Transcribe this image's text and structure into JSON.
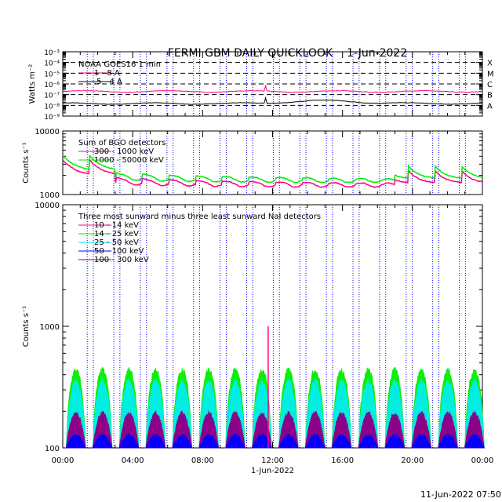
{
  "title": "FERMI GBM DAILY QUICKLOOK",
  "date": "1-Jun-2022",
  "footer_timestamp": "11-Jun-2022 07:50",
  "xlabel": "1-Jun-2022",
  "x_ticks": [
    "00:00",
    "04:00",
    "08:00",
    "12:00",
    "16:00",
    "20:00",
    "00:00"
  ],
  "colors": {
    "magenta": "#ff0088",
    "green": "#00ee00",
    "cyan": "#00eeee",
    "blue": "#0000ff",
    "purple": "#880088",
    "black": "#000000",
    "saa_lines": "#0000ff"
  },
  "chart_data": [
    {
      "type": "line",
      "panel": "goes",
      "ylabel": "Watts m⁻²",
      "yscale": "log",
      "ylim": [
        1e-09,
        0.001
      ],
      "y_ticks": [
        "10⁻³",
        "10⁻⁴",
        "10⁻⁵",
        "10⁻⁶",
        "10⁻⁷",
        "10⁻⁸",
        "10⁻⁹"
      ],
      "class_labels": [
        "X",
        "M",
        "C",
        "B",
        "A"
      ],
      "legend_title": "NOAA GOES16 1 min",
      "series": [
        {
          "name": "1 - 8 A",
          "color": "magenta",
          "level": 2e-07
        },
        {
          "name": ".5 - 4 A",
          "color": "black",
          "level": 1.5e-08
        }
      ]
    },
    {
      "type": "line",
      "panel": "bgo",
      "ylabel": "Counts s⁻¹",
      "yscale": "log",
      "ylim": [
        1000,
        10000
      ],
      "y_ticks": [
        "10000",
        "1000"
      ],
      "legend_title": "Sum of BGO detectors",
      "series": [
        {
          "name": "300 - 1000 keV",
          "color": "magenta"
        },
        {
          "name": "1000 - 50000 keV",
          "color": "green"
        }
      ]
    },
    {
      "type": "line",
      "panel": "nai",
      "ylabel": "Counts s⁻¹",
      "yscale": "log",
      "ylim": [
        100,
        10000
      ],
      "y_ticks": [
        "10000",
        "1000",
        "100"
      ],
      "legend_title": "Three most sunward minus three least sunward NaI detectors",
      "series": [
        {
          "name": "10 - 14 keV",
          "color": "magenta",
          "peak": 180
        },
        {
          "name": "14 - 25 keV",
          "color": "green",
          "peak": 460
        },
        {
          "name": "25 - 50 keV",
          "color": "cyan",
          "peak": 370
        },
        {
          "name": "50 - 100 keV",
          "color": "blue",
          "peak": 130
        },
        {
          "name": "100 - 300 keV",
          "color": "purple",
          "peak": 200
        }
      ],
      "spike": {
        "time": "11:45",
        "value": 1000
      }
    }
  ]
}
